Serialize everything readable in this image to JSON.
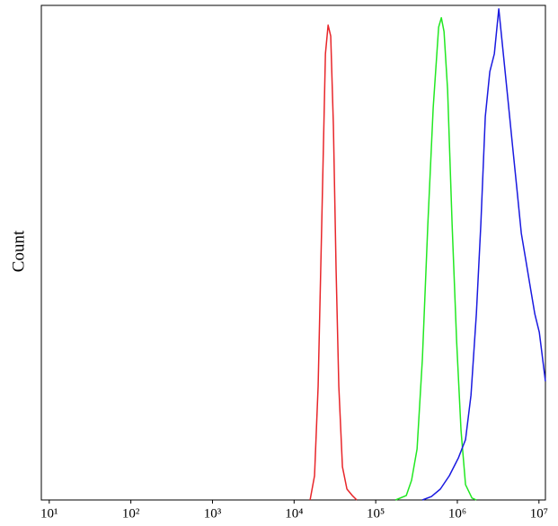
{
  "chart_data": {
    "type": "line",
    "ylabel": "Count",
    "xscale": "log",
    "xlim": [
      8,
      12000000
    ],
    "ylim": [
      0,
      100
    ],
    "xticks": [
      {
        "value": 10,
        "label": "10¹"
      },
      {
        "value": 100,
        "label": "10²"
      },
      {
        "value": 1000,
        "label": "10³"
      },
      {
        "value": 10000,
        "label": "10⁴"
      },
      {
        "value": 100000,
        "label": "10⁵"
      },
      {
        "value": 1000000,
        "label": "10⁶"
      },
      {
        "value": 10000000,
        "label": "10⁷"
      }
    ],
    "series": [
      {
        "color": "#e8262a",
        "x": [
          15700,
          17800,
          19700,
          21800,
          24200,
          26100,
          28100,
          30300,
          32700,
          35300,
          39100,
          44400,
          51600,
          58600
        ],
        "values": [
          0,
          4.9,
          23,
          55.7,
          90.2,
          96,
          93.8,
          75.7,
          46.6,
          23,
          6.7,
          2.2,
          0.9,
          0
        ]
      },
      {
        "color": "#22e822",
        "x": [
          175000,
          237000,
          275000,
          321000,
          373000,
          435000,
          506000,
          590000,
          637000,
          687000,
          760000,
          863000,
          980000,
          1110000,
          1260000,
          1510000,
          1710000
        ],
        "values": [
          0,
          0.9,
          4,
          10.3,
          28.5,
          55.7,
          79.3,
          95.6,
          97.5,
          94.7,
          82.9,
          55.7,
          32.1,
          14,
          3.1,
          0.4,
          0
        ]
      },
      {
        "color": "#1a1ae0",
        "x": [
          373000,
          481000,
          619000,
          798000,
          1030000,
          1260000,
          1470000,
          1710000,
          1940000,
          2200000,
          2500000,
          2840000,
          3220000,
          3660000,
          4160000,
          4720000,
          5360000,
          6080000,
          6900000,
          7840000,
          8900000,
          10100000,
          12000000
        ],
        "values": [
          0,
          0.7,
          2.2,
          4.9,
          8.5,
          12.2,
          21.2,
          37.6,
          55.7,
          77.5,
          86.6,
          90.2,
          99.3,
          90.2,
          81.1,
          72,
          63,
          53.9,
          48.5,
          43,
          37.6,
          33.9,
          24
        ]
      }
    ]
  }
}
